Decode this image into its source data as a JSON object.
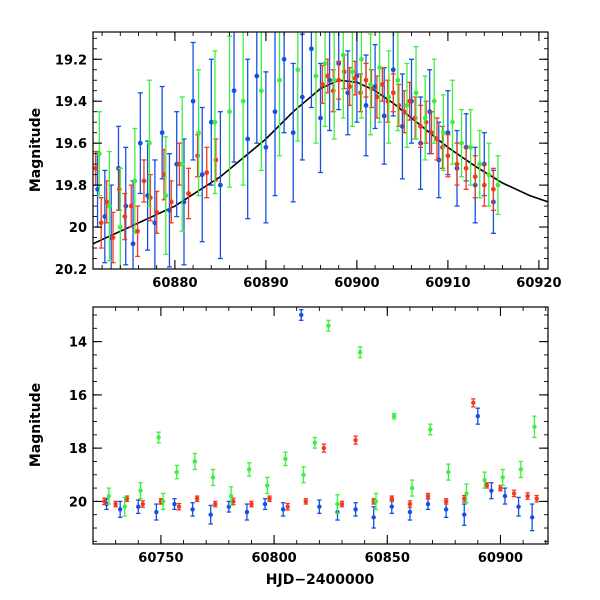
{
  "colors": {
    "blue": "#1450e6",
    "red": "#f03a1e",
    "green": "#3ef03e",
    "model": "#000000"
  },
  "chart_data": [
    {
      "type": "scatter",
      "title": "",
      "xlabel": "",
      "ylabel": "Magnitude",
      "xlim": [
        60871,
        60921
      ],
      "ylim": [
        20.2,
        19.07
      ],
      "y_inverted": true,
      "xticks": [
        60880,
        60890,
        60900,
        60910,
        60920
      ],
      "yticks": [
        19.2,
        19.4,
        19.6,
        19.8,
        20,
        20.2
      ],
      "xtick_labels": [
        "60880",
        "60890",
        "60900",
        "60910",
        "60920"
      ],
      "ytick_labels": [
        "19.2",
        "19.4",
        "19.6",
        "19.8",
        "20",
        "20.2"
      ],
      "grid": false,
      "legend": "none",
      "error_bars": true,
      "series": [
        {
          "color": "blue",
          "x": [
            60871.5,
            60872.3,
            60873.0,
            60873.8,
            60874.6,
            60875.4,
            60876.2,
            60877.0,
            60877.8,
            60878.6,
            60879.4,
            60880.2,
            60881.0,
            60882.0,
            60883.0,
            60884.0,
            60885.0,
            60886.5,
            60888.0,
            60889.0,
            60890.0,
            60891.0,
            60892.0,
            60893.0,
            60894.0,
            60895.0,
            60896.0,
            60897.0,
            60898.0,
            60899.0,
            60900.0,
            60901.0,
            60902.0,
            60903.0,
            60904.0,
            60905.0,
            60906.0,
            60907.0,
            60908.0,
            60909.0,
            60910.0,
            60911.0,
            60912.0,
            60913.0,
            60914.0,
            60915.0
          ],
          "y": [
            19.82,
            19.95,
            20.05,
            19.72,
            19.9,
            20.08,
            19.6,
            19.85,
            19.98,
            19.55,
            19.92,
            19.7,
            19.88,
            19.4,
            19.75,
            19.5,
            19.8,
            19.35,
            19.58,
            19.28,
            19.62,
            19.45,
            19.2,
            19.55,
            19.38,
            19.15,
            19.48,
            19.3,
            19.22,
            19.36,
            19.28,
            19.42,
            19.33,
            19.47,
            19.25,
            19.52,
            19.4,
            19.6,
            19.45,
            19.68,
            19.55,
            19.72,
            19.62,
            19.8,
            19.7,
            19.88
          ],
          "yerr": [
            0.18,
            0.22,
            0.25,
            0.2,
            0.28,
            0.3,
            0.24,
            0.26,
            0.3,
            0.22,
            0.27,
            0.25,
            0.3,
            0.28,
            0.32,
            0.3,
            0.35,
            0.34,
            0.38,
            0.32,
            0.36,
            0.4,
            0.35,
            0.33,
            0.3,
            0.28,
            0.26,
            0.24,
            0.22,
            0.2,
            0.22,
            0.24,
            0.2,
            0.23,
            0.22,
            0.25,
            0.2,
            0.22,
            0.2,
            0.18,
            0.2,
            0.18,
            0.16,
            0.18,
            0.15,
            0.15
          ]
        },
        {
          "color": "red",
          "x": [
            60871.3,
            60871.9,
            60872.5,
            60873.2,
            60873.9,
            60874.5,
            60875.2,
            60875.9,
            60876.6,
            60877.3,
            60878.0,
            60878.8,
            60879.6,
            60880.5,
            60881.5,
            60882.5,
            60883.5,
            60884.5,
            60896.2,
            60896.8,
            60897.4,
            60898.0,
            60898.6,
            60899.2,
            60899.8,
            60900.4,
            60901.0,
            60901.6,
            60902.2,
            60902.8,
            60903.4,
            60904.0,
            60904.6,
            60905.2,
            60905.8,
            60906.4,
            60907.0,
            60907.6,
            60908.2,
            60908.8,
            60909.4,
            60910.0,
            60911.0,
            60912.0,
            60913.0,
            60914.0,
            60915.0
          ],
          "y": [
            19.72,
            19.98,
            19.88,
            20.05,
            19.82,
            19.95,
            19.9,
            20.02,
            19.78,
            19.86,
            19.93,
            19.75,
            19.88,
            19.7,
            19.84,
            19.66,
            19.74,
            19.68,
            19.32,
            19.28,
            19.35,
            19.3,
            19.26,
            19.33,
            19.29,
            19.36,
            19.3,
            19.34,
            19.38,
            19.32,
            19.4,
            19.36,
            19.42,
            19.45,
            19.4,
            19.48,
            19.52,
            19.5,
            19.55,
            19.58,
            19.62,
            19.66,
            19.7,
            19.72,
            19.76,
            19.8,
            19.82
          ],
          "yerr": [
            0.08,
            0.12,
            0.1,
            0.12,
            0.1,
            0.11,
            0.1,
            0.12,
            0.1,
            0.11,
            0.1,
            0.12,
            0.1,
            0.1,
            0.12,
            0.1,
            0.12,
            0.1,
            0.09,
            0.08,
            0.1,
            0.09,
            0.08,
            0.09,
            0.08,
            0.09,
            0.08,
            0.09,
            0.1,
            0.08,
            0.1,
            0.09,
            0.1,
            0.1,
            0.09,
            0.1,
            0.1,
            0.1,
            0.1,
            0.1,
            0.1,
            0.1,
            0.1,
            0.1,
            0.1,
            0.1,
            0.1
          ]
        },
        {
          "color": "green",
          "x": [
            60871.7,
            60872.8,
            60874.0,
            60875.6,
            60877.2,
            60879.0,
            60880.8,
            60882.6,
            60884.4,
            60886.0,
            60887.5,
            60889.5,
            60891.5,
            60893.5,
            60895.5,
            60896.5,
            60897.5,
            60898.5,
            60899.5,
            60900.5,
            60901.5,
            60902.5,
            60903.5,
            60904.5,
            60905.5,
            60906.5,
            60907.5,
            60908.5,
            60909.5,
            60910.5,
            60911.5,
            60912.5,
            60913.5,
            60914.5,
            60915.5
          ],
          "y": [
            19.65,
            19.9,
            20.0,
            19.78,
            19.6,
            19.85,
            19.7,
            19.55,
            19.5,
            19.45,
            19.4,
            19.35,
            19.3,
            19.25,
            19.28,
            19.22,
            19.3,
            19.18,
            19.26,
            19.2,
            19.32,
            19.24,
            19.38,
            19.3,
            19.42,
            19.36,
            19.48,
            19.4,
            19.55,
            19.5,
            19.6,
            19.62,
            19.7,
            19.75,
            19.8
          ],
          "yerr": [
            0.2,
            0.26,
            0.28,
            0.25,
            0.3,
            0.28,
            0.32,
            0.3,
            0.34,
            0.36,
            0.4,
            0.38,
            0.36,
            0.34,
            0.32,
            0.3,
            0.28,
            0.3,
            0.26,
            0.28,
            0.24,
            0.26,
            0.22,
            0.24,
            0.2,
            0.22,
            0.2,
            0.2,
            0.18,
            0.2,
            0.16,
            0.18,
            0.16,
            0.15,
            0.14
          ]
        }
      ],
      "model_curve": {
        "color": "model",
        "x": [
          60871,
          60875,
          60880,
          60885,
          60890,
          60893,
          60896,
          60898,
          60900,
          60902,
          60904,
          60906,
          60908,
          60910,
          60913,
          60916,
          60919,
          60921
        ],
        "y": [
          20.08,
          20.0,
          19.9,
          19.76,
          19.58,
          19.45,
          19.34,
          19.3,
          19.31,
          19.35,
          19.41,
          19.48,
          19.55,
          19.62,
          19.71,
          19.79,
          19.85,
          19.88
        ]
      }
    },
    {
      "type": "scatter",
      "title": "",
      "xlabel": "HJD−2400000",
      "ylabel": "Magnitude",
      "xlim": [
        60720,
        60921
      ],
      "ylim": [
        21.6,
        12.7
      ],
      "y_inverted": true,
      "xticks": [
        60750,
        60800,
        60850,
        60900
      ],
      "yticks": [
        14,
        16,
        18,
        20
      ],
      "xtick_labels": [
        "60750",
        "60800",
        "60850",
        "60900"
      ],
      "ytick_labels": [
        "14",
        "16",
        "18",
        "20"
      ],
      "grid": false,
      "legend": "none",
      "error_bars": true,
      "series": [
        {
          "color": "blue",
          "x": [
            60726,
            60732,
            60740,
            60748,
            60756,
            60764,
            60772,
            60780,
            60788,
            60796,
            60804,
            60812,
            60820,
            60828,
            60836,
            60844,
            60852,
            60860,
            60868,
            60876,
            60884,
            60890,
            60896,
            60902,
            60908,
            60914
          ],
          "y": [
            20.1,
            20.3,
            20.2,
            20.4,
            20.1,
            20.3,
            20.5,
            20.2,
            20.4,
            20.1,
            20.3,
            13.0,
            20.2,
            20.4,
            20.3,
            20.6,
            20.2,
            20.4,
            20.1,
            20.3,
            20.5,
            16.8,
            19.6,
            19.8,
            20.2,
            20.6
          ],
          "yerr": [
            0.2,
            0.3,
            0.25,
            0.3,
            0.2,
            0.25,
            0.35,
            0.2,
            0.3,
            0.2,
            0.25,
            0.2,
            0.25,
            0.3,
            0.25,
            0.4,
            0.25,
            0.3,
            0.2,
            0.3,
            0.4,
            0.3,
            0.3,
            0.3,
            0.35,
            0.5
          ]
        },
        {
          "color": "red",
          "x": [
            60725,
            60730,
            60735,
            60742,
            60750,
            60758,
            60766,
            60774,
            60782,
            60790,
            60798,
            60806,
            60814,
            60822,
            60830,
            60836,
            60844,
            60852,
            60860,
            60868,
            60876,
            60884,
            60888,
            60894,
            60900,
            60906,
            60912,
            60916
          ],
          "y": [
            20.0,
            20.1,
            19.9,
            20.1,
            20.0,
            20.2,
            19.9,
            20.1,
            20.0,
            20.1,
            19.9,
            20.2,
            20.0,
            18.0,
            20.1,
            17.7,
            20.0,
            19.9,
            20.1,
            19.8,
            20.0,
            19.9,
            16.3,
            19.4,
            19.5,
            19.7,
            19.8,
            19.9
          ],
          "yerr": [
            0.12,
            0.1,
            0.1,
            0.12,
            0.1,
            0.12,
            0.1,
            0.1,
            0.12,
            0.1,
            0.1,
            0.12,
            0.1,
            0.15,
            0.1,
            0.15,
            0.1,
            0.1,
            0.12,
            0.1,
            0.1,
            0.12,
            0.15,
            0.1,
            0.1,
            0.12,
            0.12,
            0.12
          ]
        },
        {
          "color": "green",
          "x": [
            60727,
            60734,
            60741,
            60749,
            60751,
            60757,
            60765,
            60773,
            60781,
            60789,
            60797,
            60805,
            60813,
            60818,
            60824,
            60828,
            60838,
            60845,
            60853,
            60861,
            60869,
            60877,
            60885,
            60893,
            60901,
            60909,
            60915
          ],
          "y": [
            19.8,
            20.2,
            19.6,
            17.6,
            20.0,
            18.9,
            18.5,
            19.1,
            19.8,
            18.8,
            19.4,
            18.4,
            19.0,
            17.8,
            13.4,
            20.1,
            14.4,
            20.0,
            16.8,
            19.5,
            17.3,
            18.9,
            19.7,
            19.2,
            19.1,
            18.8,
            17.2
          ],
          "yerr": [
            0.3,
            0.35,
            0.3,
            0.2,
            0.3,
            0.25,
            0.3,
            0.3,
            0.35,
            0.25,
            0.3,
            0.25,
            0.3,
            0.2,
            0.2,
            0.35,
            0.2,
            0.3,
            0.1,
            0.3,
            0.2,
            0.3,
            0.35,
            0.3,
            0.3,
            0.3,
            0.4
          ]
        }
      ]
    }
  ]
}
